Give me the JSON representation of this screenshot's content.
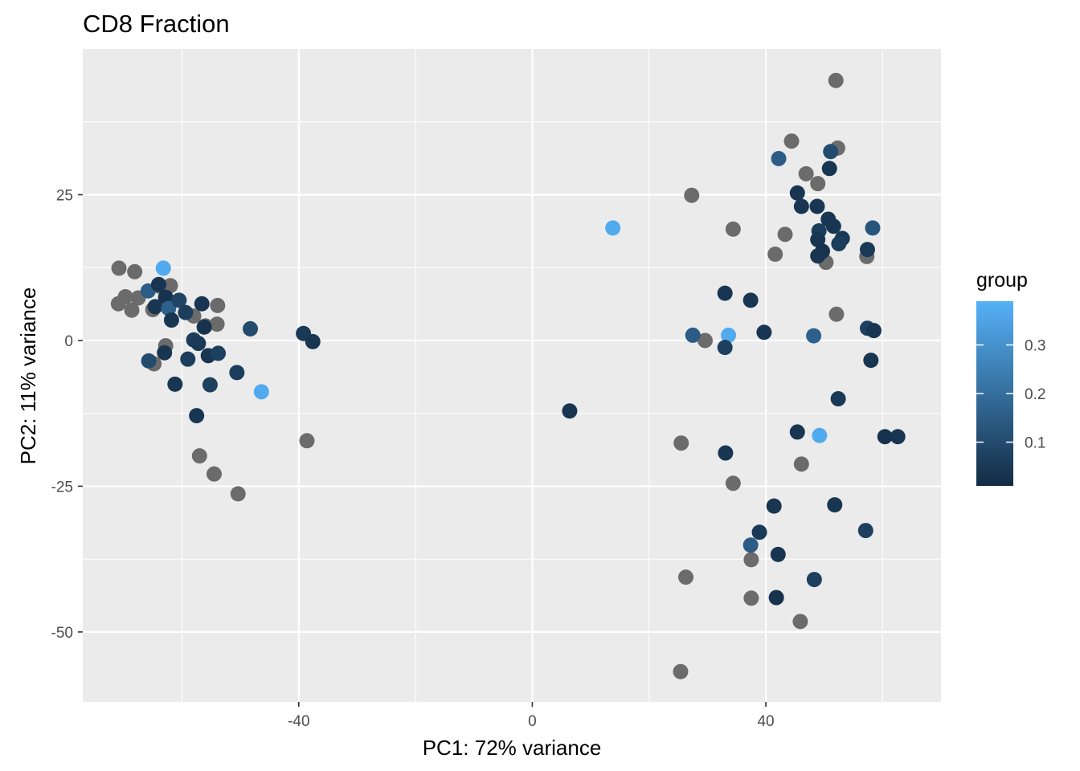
{
  "chart_data": {
    "type": "scatter",
    "title": "CD8 Fraction",
    "xlabel": "PC1: 72% variance",
    "ylabel": "PC2: 11% variance",
    "xlim": [
      -77,
      70
    ],
    "ylim": [
      -62,
      50
    ],
    "x_ticks": [
      -40,
      0,
      40
    ],
    "y_ticks": [
      -50,
      -25,
      0,
      25
    ],
    "x_tick_labels": [
      "-40",
      "0",
      "40"
    ],
    "y_tick_labels": [
      "-50",
      "-25",
      "0",
      "25"
    ],
    "grid": true,
    "legend": {
      "title": "group",
      "position": "right",
      "type": "continuous colorbar",
      "range": [
        0.01,
        0.39
      ],
      "ticks": [
        0.1,
        0.2,
        0.3
      ],
      "tick_labels": [
        "0.1",
        "0.2",
        "0.3"
      ],
      "low_color": "#132B43",
      "high_color": "#56B1F7",
      "na_color": "#6b6b6b"
    },
    "points": [
      {
        "x": -70.8,
        "y": 12.4,
        "group": null
      },
      {
        "x": -68.1,
        "y": 11.8,
        "group": null
      },
      {
        "x": -69.7,
        "y": 7.5,
        "group": null
      },
      {
        "x": -70.9,
        "y": 6.3,
        "group": null
      },
      {
        "x": -67.5,
        "y": 7.3,
        "group": null
      },
      {
        "x": -68.6,
        "y": 5.2,
        "group": null
      },
      {
        "x": -65.0,
        "y": 5.3,
        "group": null
      },
      {
        "x": -63.8,
        "y": 9.3,
        "group": null
      },
      {
        "x": -62.0,
        "y": 9.4,
        "group": null
      },
      {
        "x": -58.0,
        "y": 4.2,
        "group": null
      },
      {
        "x": -56.0,
        "y": 2.5,
        "group": null
      },
      {
        "x": -53.9,
        "y": 6.0,
        "group": null
      },
      {
        "x": -54.0,
        "y": 2.8,
        "group": null
      },
      {
        "x": -62.8,
        "y": -0.9,
        "group": null
      },
      {
        "x": -64.8,
        "y": -4.0,
        "group": null
      },
      {
        "x": -57.0,
        "y": -19.8,
        "group": null
      },
      {
        "x": -54.5,
        "y": -22.9,
        "group": null
      },
      {
        "x": -50.4,
        "y": -26.3,
        "group": null
      },
      {
        "x": -38.6,
        "y": -17.2,
        "group": null
      },
      {
        "x": -63.2,
        "y": 12.4,
        "group": 0.37
      },
      {
        "x": -65.8,
        "y": 8.5,
        "group": 0.15
      },
      {
        "x": -64.0,
        "y": 9.6,
        "group": 0.04
      },
      {
        "x": -62.8,
        "y": 7.4,
        "group": 0.03
      },
      {
        "x": -64.6,
        "y": 5.8,
        "group": 0.04
      },
      {
        "x": -62.3,
        "y": 5.5,
        "group": 0.16
      },
      {
        "x": -60.5,
        "y": 6.9,
        "group": 0.08
      },
      {
        "x": -61.8,
        "y": 3.5,
        "group": 0.04
      },
      {
        "x": -59.4,
        "y": 4.8,
        "group": 0.06
      },
      {
        "x": -56.6,
        "y": 6.3,
        "group": 0.04
      },
      {
        "x": -56.2,
        "y": 2.3,
        "group": 0.03
      },
      {
        "x": -58.0,
        "y": 0.1,
        "group": 0.06
      },
      {
        "x": -57.2,
        "y": -0.5,
        "group": 0.05
      },
      {
        "x": -55.5,
        "y": -2.6,
        "group": 0.04
      },
      {
        "x": -53.8,
        "y": -2.2,
        "group": 0.07
      },
      {
        "x": -59.0,
        "y": -3.2,
        "group": 0.06
      },
      {
        "x": -63.0,
        "y": -2.1,
        "group": 0.04
      },
      {
        "x": -65.7,
        "y": -3.5,
        "group": 0.1
      },
      {
        "x": -61.2,
        "y": -7.5,
        "group": 0.04
      },
      {
        "x": -55.2,
        "y": -7.6,
        "group": 0.07
      },
      {
        "x": -57.5,
        "y": -12.9,
        "group": 0.04
      },
      {
        "x": -50.6,
        "y": -5.5,
        "group": 0.06
      },
      {
        "x": -48.3,
        "y": 2.0,
        "group": 0.1
      },
      {
        "x": -46.4,
        "y": -8.8,
        "group": 0.37
      },
      {
        "x": -39.2,
        "y": 1.2,
        "group": 0.05
      },
      {
        "x": -37.6,
        "y": -0.2,
        "group": 0.04
      },
      {
        "x": 6.4,
        "y": -12.1,
        "group": 0.04
      },
      {
        "x": 13.8,
        "y": 19.3,
        "group": 0.37
      },
      {
        "x": 52.0,
        "y": 44.6,
        "group": null
      },
      {
        "x": 44.4,
        "y": 34.2,
        "group": null
      },
      {
        "x": 52.3,
        "y": 33.0,
        "group": null
      },
      {
        "x": 46.9,
        "y": 28.6,
        "group": null
      },
      {
        "x": 48.9,
        "y": 26.9,
        "group": null
      },
      {
        "x": 27.3,
        "y": 24.9,
        "group": null
      },
      {
        "x": 34.4,
        "y": 19.1,
        "group": null
      },
      {
        "x": 43.3,
        "y": 18.2,
        "group": null
      },
      {
        "x": 41.6,
        "y": 14.8,
        "group": null
      },
      {
        "x": 50.3,
        "y": 13.4,
        "group": null
      },
      {
        "x": 57.3,
        "y": 14.4,
        "group": null
      },
      {
        "x": 52.1,
        "y": 4.5,
        "group": null
      },
      {
        "x": 29.6,
        "y": 0.0,
        "group": null
      },
      {
        "x": 25.5,
        "y": -17.6,
        "group": null
      },
      {
        "x": 46.1,
        "y": -21.2,
        "group": null
      },
      {
        "x": 34.4,
        "y": -24.5,
        "group": null
      },
      {
        "x": 37.5,
        "y": -37.6,
        "group": null
      },
      {
        "x": 26.3,
        "y": -40.6,
        "group": null
      },
      {
        "x": 37.5,
        "y": -44.2,
        "group": null
      },
      {
        "x": 45.9,
        "y": -48.2,
        "group": null
      },
      {
        "x": 25.4,
        "y": -56.8,
        "group": null
      },
      {
        "x": 42.2,
        "y": 31.2,
        "group": 0.15
      },
      {
        "x": 51.1,
        "y": 32.4,
        "group": 0.1
      },
      {
        "x": 50.9,
        "y": 29.5,
        "group": 0.04
      },
      {
        "x": 45.4,
        "y": 25.3,
        "group": 0.04
      },
      {
        "x": 46.1,
        "y": 23.0,
        "group": 0.04
      },
      {
        "x": 48.8,
        "y": 23.0,
        "group": 0.04
      },
      {
        "x": 50.7,
        "y": 20.8,
        "group": 0.04
      },
      {
        "x": 51.6,
        "y": 19.6,
        "group": 0.04
      },
      {
        "x": 58.3,
        "y": 19.3,
        "group": 0.13
      },
      {
        "x": 49.1,
        "y": 18.8,
        "group": 0.06
      },
      {
        "x": 48.9,
        "y": 17.3,
        "group": 0.04
      },
      {
        "x": 53.1,
        "y": 17.5,
        "group": 0.05
      },
      {
        "x": 52.5,
        "y": 16.6,
        "group": 0.06
      },
      {
        "x": 49.7,
        "y": 15.3,
        "group": 0.03
      },
      {
        "x": 48.9,
        "y": 14.5,
        "group": 0.04
      },
      {
        "x": 57.4,
        "y": 15.6,
        "group": 0.05
      },
      {
        "x": 33.0,
        "y": 8.1,
        "group": 0.04
      },
      {
        "x": 37.4,
        "y": 6.9,
        "group": 0.04
      },
      {
        "x": 27.5,
        "y": 0.9,
        "group": 0.15
      },
      {
        "x": 33.6,
        "y": 0.9,
        "group": 0.37
      },
      {
        "x": 33.0,
        "y": -1.2,
        "group": 0.07
      },
      {
        "x": 39.7,
        "y": 1.4,
        "group": 0.04
      },
      {
        "x": 48.2,
        "y": 0.8,
        "group": 0.16
      },
      {
        "x": 57.4,
        "y": 2.1,
        "group": 0.07
      },
      {
        "x": 58.5,
        "y": 1.7,
        "group": 0.04
      },
      {
        "x": 58.0,
        "y": -3.4,
        "group": 0.04
      },
      {
        "x": 52.4,
        "y": -10.0,
        "group": 0.05
      },
      {
        "x": 45.4,
        "y": -15.7,
        "group": 0.04
      },
      {
        "x": 49.2,
        "y": -16.3,
        "group": 0.37
      },
      {
        "x": 60.4,
        "y": -16.5,
        "group": 0.03
      },
      {
        "x": 62.6,
        "y": -16.5,
        "group": 0.04
      },
      {
        "x": 33.1,
        "y": -19.3,
        "group": 0.04
      },
      {
        "x": 41.4,
        "y": -28.4,
        "group": 0.04
      },
      {
        "x": 51.8,
        "y": -28.2,
        "group": 0.04
      },
      {
        "x": 57.1,
        "y": -32.6,
        "group": 0.07
      },
      {
        "x": 38.9,
        "y": -32.9,
        "group": 0.05
      },
      {
        "x": 37.4,
        "y": -35.1,
        "group": 0.15
      },
      {
        "x": 42.1,
        "y": -36.7,
        "group": 0.04
      },
      {
        "x": 48.3,
        "y": -41.0,
        "group": 0.07
      },
      {
        "x": 41.8,
        "y": -44.1,
        "group": 0.03
      }
    ]
  }
}
